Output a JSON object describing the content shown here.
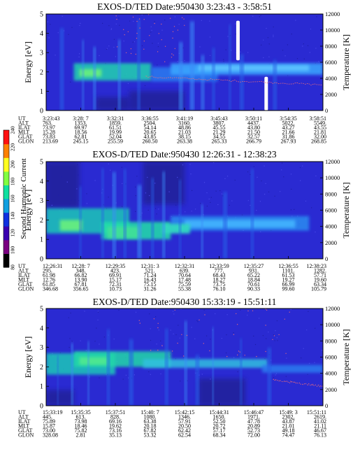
{
  "colors": {
    "background": "#2a2ad2",
    "dark": "#1a1a7a",
    "band_light": "#3a9cff",
    "band_mid": "#2c7cf0",
    "band_hot": "#22e0a8",
    "band_peak": "#9aff60",
    "spike": "#ffffff",
    "temperature": "#ff7070"
  },
  "colorbar": {
    "label": "Second Harmonic Current",
    "ticks": [
      "80",
      "100",
      "120",
      "140",
      "160",
      "180",
      "200",
      "220",
      "240"
    ],
    "colors": [
      "#000000",
      "#7a0080",
      "#3a00b0",
      "#1030e0",
      "#10a0e0",
      "#10e0a0",
      "#80ff40",
      "#ffff20",
      "#ff8000",
      "#ff1010"
    ]
  },
  "chart_data": [
    {
      "type": "heatmap",
      "title": "EXOS-D/TED   Date:950430   3:23:43 - 3:58:51",
      "ylabel": "Energy [eV]",
      "y2label": "Temperature [K]",
      "ylim": [
        0,
        5
      ],
      "y2lim": [
        0,
        12000
      ],
      "yticks": [
        "0",
        "1",
        "2",
        "3",
        "4",
        "5"
      ],
      "y2ticks": [
        "0",
        "2000",
        "4000",
        "6000",
        "8000",
        "10000",
        "12000"
      ],
      "table": {
        "rows": [
          "UT",
          "ALT",
          "ILAT",
          "MLT",
          "GLAT",
          "GLON"
        ],
        "columns": [
          [
            "3:23:43",
            "763.",
            "73.97",
            "15.28",
            "73.83",
            "213.69"
          ],
          [
            "3:28: 7",
            "1353.",
            "69.97",
            "18.56",
            "62.81",
            "245.15"
          ],
          [
            "3:32:31",
            "1859.",
            "61.51",
            "19.99",
            "52.04",
            "255.59"
          ],
          [
            "3:36:55",
            "2504.",
            "54.14",
            "20.65",
            "43.85",
            "260.50"
          ],
          [
            "3:41:19",
            "3160.",
            "48.86",
            "21.03",
            "38.15",
            "263.38"
          ],
          [
            "3:45:43",
            "3807.",
            "45.55",
            "21.29",
            "34.55",
            "265.33"
          ],
          [
            "3:50:11",
            "4437.",
            "43.80",
            "21.50",
            "32.57",
            "266.79"
          ],
          [
            "3:54:35",
            "5022.",
            "43.27",
            "21.66",
            "31.86",
            "267.93"
          ],
          [
            "3:58:51",
            "5549.",
            "43.55",
            "21.81",
            "32.00",
            "268.85"
          ]
        ]
      }
    },
    {
      "type": "heatmap",
      "title": "EXOS-D/TED   Date:950430   12:26:31 - 12:38:23",
      "ylabel": "Energy [eV]",
      "y2label": "Temperature [K]",
      "ylim": [
        0,
        5
      ],
      "y2lim": [
        0,
        12000
      ],
      "yticks": [
        "0",
        "1",
        "2",
        "3",
        "4",
        "5"
      ],
      "y2ticks": [
        "0",
        "2000",
        "4000",
        "6000",
        "8000",
        "10000",
        "12000"
      ],
      "table": {
        "rows": [
          "UT",
          "ALT",
          "ILAT",
          "MLT",
          "GLAT",
          "GLON"
        ],
        "columns": [
          [
            "12:26:31",
            "295.",
            "61.98",
            "12.76",
            "61.85",
            "346.68"
          ],
          [
            "12:28: 7",
            "348.",
            "66.82",
            "13.90",
            "67.81",
            "356.65"
          ],
          [
            "12:29:35",
            "423.",
            "69.91",
            "15.17",
            "72.31",
            "10.73"
          ],
          [
            "12:31: 3",
            "521.",
            "71.24",
            "16.43",
            "75.15",
            "31.26"
          ],
          [
            "12:32:31",
            "639.",
            "70.64",
            "17.48",
            "75.59",
            "55.38"
          ],
          [
            "12:33:59",
            "777.",
            "68.43",
            "18.27",
            "73.75",
            "76.10"
          ],
          [
            "12:35:27",
            "931.",
            "65.22",
            "18.84",
            "70.61",
            "90.33"
          ],
          [
            "12:36:55",
            "1101.",
            "61.53",
            "19.27",
            "66.99",
            "99.60"
          ],
          [
            "12:38:23",
            "1282.",
            "57.71",
            "19.60",
            "63.34",
            "105.79"
          ]
        ]
      }
    },
    {
      "type": "heatmap",
      "title": "EXOS-D/TED   Date:950430   15:33:19 - 15:51:11",
      "ylabel": "Energy [eV]",
      "y2label": "Temperature [K]",
      "ylim": [
        0,
        5
      ],
      "y2lim": [
        0,
        12000
      ],
      "yticks": [
        "0",
        "1",
        "2",
        "3",
        "4",
        "5"
      ],
      "y2ticks": [
        "0",
        "2000",
        "4000",
        "6000",
        "8000",
        "10000",
        "12000"
      ],
      "table": {
        "rows": [
          "UT",
          "ALT",
          "ILAT",
          "MLT",
          "GLAT",
          "GLON"
        ],
        "columns": [
          [
            "15:33:19",
            "445.",
            "75.89",
            "15.87",
            "73.00",
            "328.08"
          ],
          [
            "15:35:35",
            "613.",
            "73.98",
            "18.46",
            "75.82",
            "2.81"
          ],
          [
            "15:37:51",
            "828.",
            "69.16",
            "19.62",
            "73.16",
            "35.13"
          ],
          [
            "15:40: 7",
            "1080.",
            "63.38",
            "20.18",
            "67.82",
            "53.32"
          ],
          [
            "15:42:15",
            "1346.",
            "57.91",
            "20.50",
            "62.42",
            "62.54"
          ],
          [
            "15:44:31",
            "1650.",
            "52.50",
            "20.72",
            "57.17",
            "68.34"
          ],
          [
            "15:46:47",
            "1971.",
            "47.78",
            "20.89",
            "52.73",
            "72.00"
          ],
          [
            "15:49: 3",
            "2302.",
            "43.87",
            "21.01",
            "49.18",
            "74.47"
          ],
          [
            "15:51:11",
            "2619.",
            "41.02",
            "21.11",
            "46.67",
            "76.13"
          ]
        ]
      }
    }
  ]
}
